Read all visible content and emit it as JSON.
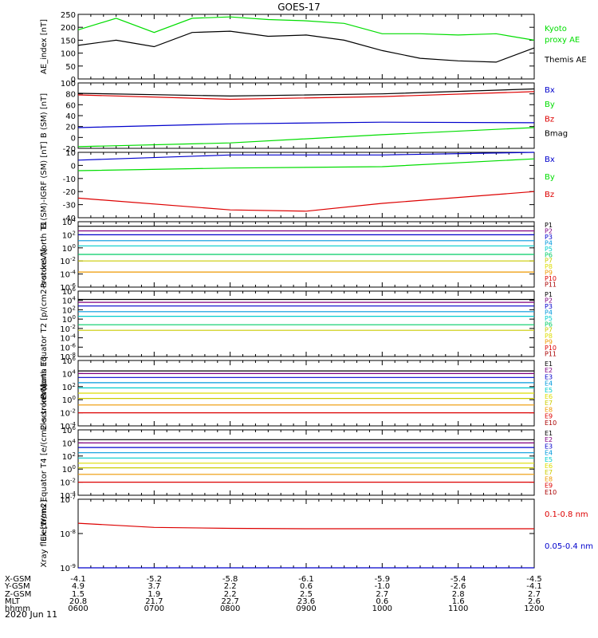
{
  "title": "GOES-17",
  "date_label": "2020 Jun 11",
  "chart_data": [
    {
      "type": "line",
      "ylabel": "AE_index [nT]",
      "ylim": [
        0,
        250
      ],
      "yticks": [
        "0",
        "50",
        "100",
        "150",
        "200",
        "250"
      ],
      "ytick_values": [
        0,
        50,
        100,
        150,
        200,
        250
      ],
      "log": false,
      "legend": [
        {
          "name": "Kyoto",
          "color": "#00dd00"
        },
        {
          "name": "proxy AE",
          "color": "#00dd00"
        },
        {
          "name": "Themis AE",
          "color": "#000000"
        }
      ],
      "series": [
        {
          "name": "Kyoto proxy AE",
          "color": "#00dd00",
          "x": [
            "0600",
            "0630",
            "0700",
            "0730",
            "0800",
            "0830",
            "0900",
            "0930",
            "1000",
            "1030",
            "1100",
            "1130",
            "1200"
          ],
          "values": [
            190,
            235,
            180,
            235,
            240,
            230,
            225,
            215,
            175,
            175,
            170,
            175,
            150
          ]
        },
        {
          "name": "Themis AE",
          "color": "#000000",
          "x": [
            "0600",
            "0630",
            "0700",
            "0730",
            "0800",
            "0830",
            "0900",
            "0930",
            "1000",
            "1030",
            "1100",
            "1130",
            "1200"
          ],
          "values": [
            130,
            150,
            125,
            180,
            185,
            165,
            170,
            150,
            110,
            80,
            70,
            65,
            120
          ]
        }
      ]
    },
    {
      "type": "line",
      "ylabel": "B (SM) [nT]",
      "ylim": [
        -20,
        100
      ],
      "yticks": [
        "-20",
        "0",
        "20",
        "40",
        "60",
        "80",
        "100"
      ],
      "ytick_values": [
        -20,
        0,
        20,
        40,
        60,
        80,
        100
      ],
      "log": false,
      "legend": [
        {
          "name": "Bx",
          "color": "#0000cc"
        },
        {
          "name": "By",
          "color": "#00dd00"
        },
        {
          "name": "Bz",
          "color": "#dd0000"
        },
        {
          "name": "Bmag",
          "color": "#000000"
        }
      ],
      "series": [
        {
          "name": "Bx",
          "color": "#0000cc",
          "x": [
            "0600",
            "0800",
            "1000",
            "1200"
          ],
          "values": [
            18,
            25,
            28,
            27
          ]
        },
        {
          "name": "By",
          "color": "#00dd00",
          "x": [
            "0600",
            "0800",
            "1000",
            "1200"
          ],
          "values": [
            -17,
            -10,
            5,
            18
          ]
        },
        {
          "name": "Bz",
          "color": "#dd0000",
          "x": [
            "0600",
            "0800",
            "1000",
            "1200"
          ],
          "values": [
            78,
            70,
            75,
            84
          ]
        },
        {
          "name": "Bmag",
          "color": "#000000",
          "x": [
            "0600",
            "0800",
            "1000",
            "1200"
          ],
          "values": [
            81,
            76,
            80,
            89
          ]
        }
      ]
    },
    {
      "type": "line",
      "ylabel": "B (SM)-IGRF (SM) [nT]",
      "ylim": [
        -40,
        10
      ],
      "yticks": [
        "-40",
        "-30",
        "-20",
        "-10",
        "0",
        "10"
      ],
      "ytick_values": [
        -40,
        -30,
        -20,
        -10,
        0,
        10
      ],
      "log": false,
      "legend": [
        {
          "name": "Bx",
          "color": "#0000cc"
        },
        {
          "name": "By",
          "color": "#00dd00"
        },
        {
          "name": "Bz",
          "color": "#dd0000"
        }
      ],
      "series": [
        {
          "name": "Bx",
          "color": "#0000cc",
          "x": [
            "0600",
            "0800",
            "1000",
            "1200"
          ],
          "values": [
            4,
            8,
            8,
            10
          ]
        },
        {
          "name": "By",
          "color": "#00dd00",
          "x": [
            "0600",
            "0800",
            "1000",
            "1200"
          ],
          "values": [
            -4,
            -2,
            -1,
            5
          ]
        },
        {
          "name": "Bz",
          "color": "#dd0000",
          "x": [
            "0600",
            "0800",
            "0900",
            "1000",
            "1200"
          ],
          "values": [
            -25,
            -34,
            -35,
            -29,
            -20
          ]
        }
      ]
    },
    {
      "type": "line",
      "ylabel": "Protons North T1",
      "ylim": [
        -6,
        4
      ],
      "yticks": [
        "10-6",
        "10-4",
        "10-2",
        "100",
        "102",
        "104"
      ],
      "ytick_values": [
        -6,
        -4,
        -2,
        0,
        2,
        4
      ],
      "log": true,
      "legend": [
        {
          "name": "P1",
          "color": "#000000"
        },
        {
          "name": "P2",
          "color": "#800080"
        },
        {
          "name": "P3",
          "color": "#0000cc"
        },
        {
          "name": "P4",
          "color": "#0099dd"
        },
        {
          "name": "P5",
          "color": "#00cccc"
        },
        {
          "name": "P6",
          "color": "#00cc66"
        },
        {
          "name": "P7",
          "color": "#cccc00"
        },
        {
          "name": "P8",
          "color": "#dddd00"
        },
        {
          "name": "P9",
          "color": "#ee9900"
        },
        {
          "name": "P10",
          "color": "#dd0000"
        },
        {
          "name": "P11",
          "color": "#aa0000"
        }
      ],
      "series": [
        {
          "name": "P1",
          "color": "#000000",
          "x": [
            "0600",
            "1200"
          ],
          "values": [
            3.3,
            3.3
          ]
        },
        {
          "name": "P2",
          "color": "#800080",
          "x": [
            "0600",
            "1200"
          ],
          "values": [
            2.6,
            2.6
          ]
        },
        {
          "name": "P3",
          "color": "#0000cc",
          "x": [
            "0600",
            "1200"
          ],
          "values": [
            2.0,
            2.0
          ]
        },
        {
          "name": "P4",
          "color": "#0099dd",
          "x": [
            "0600",
            "1200"
          ],
          "values": [
            1.1,
            1.1
          ]
        },
        {
          "name": "P5",
          "color": "#00cccc",
          "x": [
            "0600",
            "1200"
          ],
          "values": [
            0.3,
            0.3
          ]
        },
        {
          "name": "P6",
          "color": "#00cc66",
          "x": [
            "0600",
            "1200"
          ],
          "values": [
            -1.0,
            -1.0
          ]
        },
        {
          "name": "P7",
          "color": "#cccc00",
          "x": [
            "0600",
            "1200"
          ],
          "values": [
            -2.0,
            -2.0
          ]
        },
        {
          "name": "P9",
          "color": "#ee9900",
          "x": [
            "0600",
            "1200"
          ],
          "values": [
            -3.7,
            -3.7
          ]
        }
      ]
    },
    {
      "type": "line",
      "ylabel": "Protons Equator T2 [p/(cm2-s-sr-keV)]",
      "ylim": [
        -8,
        6
      ],
      "yticks": [
        "10-8",
        "10-6",
        "10-4",
        "10-2",
        "100",
        "102",
        "104",
        "106"
      ],
      "ytick_values": [
        -8,
        -6,
        -4,
        -2,
        0,
        2,
        4,
        6
      ],
      "log": true,
      "legend": [
        {
          "name": "P1",
          "color": "#000000"
        },
        {
          "name": "P2",
          "color": "#800080"
        },
        {
          "name": "P3",
          "color": "#0000cc"
        },
        {
          "name": "P4",
          "color": "#0099dd"
        },
        {
          "name": "P5",
          "color": "#00cccc"
        },
        {
          "name": "P6",
          "color": "#00cc66"
        },
        {
          "name": "P7",
          "color": "#cccc00"
        },
        {
          "name": "P8",
          "color": "#dddd00"
        },
        {
          "name": "P9",
          "color": "#ee9900"
        },
        {
          "name": "P10",
          "color": "#dd0000"
        },
        {
          "name": "P11",
          "color": "#aa0000"
        }
      ],
      "series": [
        {
          "name": "P1",
          "color": "#000000",
          "x": [
            "0600",
            "1200"
          ],
          "values": [
            4.2,
            4.2
          ]
        },
        {
          "name": "P2",
          "color": "#800080",
          "x": [
            "0600",
            "1200"
          ],
          "values": [
            3.6,
            3.6
          ]
        },
        {
          "name": "P3",
          "color": "#0000cc",
          "x": [
            "0600",
            "1200"
          ],
          "values": [
            2.8,
            2.8
          ]
        },
        {
          "name": "P4",
          "color": "#0099dd",
          "x": [
            "0600",
            "1200"
          ],
          "values": [
            1.6,
            1.6
          ]
        },
        {
          "name": "P5",
          "color": "#00cccc",
          "x": [
            "0600",
            "1200"
          ],
          "values": [
            0.6,
            0.6
          ]
        },
        {
          "name": "P6",
          "color": "#00cc66",
          "x": [
            "0600",
            "1200"
          ],
          "values": [
            -1.2,
            -1.2
          ]
        },
        {
          "name": "P7",
          "color": "#cccc00",
          "x": [
            "0600",
            "1200"
          ],
          "values": [
            -2.4,
            -2.4
          ]
        }
      ]
    },
    {
      "type": "line",
      "ylabel": "Electrons North T3",
      "ylim": [
        -4,
        6
      ],
      "yticks": [
        "10-4",
        "10-2",
        "100",
        "102",
        "104",
        "106"
      ],
      "ytick_values": [
        -4,
        -2,
        0,
        2,
        4,
        6
      ],
      "log": true,
      "legend": [
        {
          "name": "E1",
          "color": "#000000"
        },
        {
          "name": "E2",
          "color": "#800080"
        },
        {
          "name": "E3",
          "color": "#0000cc"
        },
        {
          "name": "E4",
          "color": "#0099dd"
        },
        {
          "name": "E5",
          "color": "#00cccc"
        },
        {
          "name": "E6",
          "color": "#dddd00"
        },
        {
          "name": "E7",
          "color": "#cccc00"
        },
        {
          "name": "E8",
          "color": "#ee9900"
        },
        {
          "name": "E9",
          "color": "#dd0000"
        },
        {
          "name": "E10",
          "color": "#aa0000"
        }
      ],
      "series": [
        {
          "name": "E1",
          "color": "#000000",
          "x": [
            "0600",
            "1200"
          ],
          "values": [
            4.4,
            4.4
          ]
        },
        {
          "name": "E2",
          "color": "#800080",
          "x": [
            "0600",
            "1200"
          ],
          "values": [
            4.0,
            4.0
          ]
        },
        {
          "name": "E3",
          "color": "#0000cc",
          "x": [
            "0600",
            "1200"
          ],
          "values": [
            3.4,
            3.4
          ]
        },
        {
          "name": "E4",
          "color": "#0099dd",
          "x": [
            "0600",
            "1200"
          ],
          "values": [
            2.6,
            2.6
          ]
        },
        {
          "name": "E5",
          "color": "#00cccc",
          "x": [
            "0600",
            "1200"
          ],
          "values": [
            1.8,
            1.8
          ]
        },
        {
          "name": "E6",
          "color": "#dddd00",
          "x": [
            "0600",
            "1200"
          ],
          "values": [
            1.0,
            1.0
          ]
        },
        {
          "name": "E7",
          "color": "#cccc00",
          "x": [
            "0600",
            "1200"
          ],
          "values": [
            0.2,
            0.2
          ]
        },
        {
          "name": "E8",
          "color": "#ee9900",
          "x": [
            "0600",
            "1200"
          ],
          "values": [
            -0.8,
            -0.8
          ]
        },
        {
          "name": "E9",
          "color": "#dd0000",
          "x": [
            "0600",
            "1200"
          ],
          "values": [
            -2.0,
            -2.0
          ]
        }
      ]
    },
    {
      "type": "line",
      "ylabel": "Electrons Equator T4 [e/(cm2-s-sr-keV)]",
      "ylim": [
        -4,
        6
      ],
      "yticks": [
        "10-4",
        "10-2",
        "100",
        "102",
        "104",
        "106"
      ],
      "ytick_values": [
        -4,
        -2,
        0,
        2,
        4,
        6
      ],
      "log": true,
      "legend": [
        {
          "name": "E1",
          "color": "#000000"
        },
        {
          "name": "E2",
          "color": "#800080"
        },
        {
          "name": "E3",
          "color": "#0000cc"
        },
        {
          "name": "E4",
          "color": "#0099dd"
        },
        {
          "name": "E5",
          "color": "#00cccc"
        },
        {
          "name": "E6",
          "color": "#dddd00"
        },
        {
          "name": "E7",
          "color": "#cccc00"
        },
        {
          "name": "E8",
          "color": "#ee9900"
        },
        {
          "name": "E9",
          "color": "#dd0000"
        },
        {
          "name": "E10",
          "color": "#aa0000"
        }
      ],
      "series": [
        {
          "name": "E1",
          "color": "#000000",
          "x": [
            "0600",
            "1200"
          ],
          "values": [
            4.5,
            4.5
          ]
        },
        {
          "name": "E2",
          "color": "#800080",
          "x": [
            "0600",
            "1200"
          ],
          "values": [
            4.0,
            4.0
          ]
        },
        {
          "name": "E3",
          "color": "#0000cc",
          "x": [
            "0600",
            "1200"
          ],
          "values": [
            3.3,
            3.3
          ]
        },
        {
          "name": "E4",
          "color": "#0099dd",
          "x": [
            "0600",
            "1200"
          ],
          "values": [
            2.5,
            2.5
          ]
        },
        {
          "name": "E5",
          "color": "#00cccc",
          "x": [
            "0600",
            "1200"
          ],
          "values": [
            1.7,
            1.7
          ]
        },
        {
          "name": "E6",
          "color": "#dddd00",
          "x": [
            "0600",
            "1200"
          ],
          "values": [
            0.9,
            0.9
          ]
        },
        {
          "name": "E7",
          "color": "#cccc00",
          "x": [
            "0600",
            "1200"
          ],
          "values": [
            0.2,
            0.2
          ]
        },
        {
          "name": "E8",
          "color": "#ee9900",
          "x": [
            "0600",
            "1200"
          ],
          "values": [
            -0.8,
            -0.8
          ]
        },
        {
          "name": "E9",
          "color": "#dd0000",
          "x": [
            "0600",
            "1200"
          ],
          "values": [
            -2.0,
            -2.0
          ]
        }
      ]
    },
    {
      "type": "line",
      "ylabel": "Xray flux [W/m2]",
      "ylim": [
        -9,
        -7
      ],
      "yticks": [
        "10-9",
        "10-8",
        "10-7"
      ],
      "ytick_values": [
        -9,
        -8,
        -7
      ],
      "log": true,
      "legend": [
        {
          "name": "0.1-0.8 nm",
          "color": "#dd0000"
        },
        {
          "name": "0.05-0.4 nm",
          "color": "#0000cc"
        }
      ],
      "series": [
        {
          "name": "0.1-0.8 nm",
          "color": "#dd0000",
          "x": [
            "0600",
            "0700",
            "0800",
            "0900",
            "1000",
            "1100",
            "1200"
          ],
          "values": [
            -7.7,
            -7.82,
            -7.85,
            -7.86,
            -7.86,
            -7.86,
            -7.86
          ]
        },
        {
          "name": "0.05-0.4 nm",
          "color": "#0000cc",
          "x": [
            "0600",
            "1200"
          ],
          "values": [
            -9,
            -9
          ]
        }
      ]
    }
  ],
  "ephemeris": {
    "labels": [
      "X-GSM",
      "Y-GSM",
      "Z-GSM",
      "MLT",
      "hhmm"
    ],
    "columns": [
      [
        "-4.1",
        "4.9",
        "1.5",
        "20.8",
        "0600"
      ],
      [
        "-5.2",
        "3.7",
        "1.9",
        "21.7",
        "0700"
      ],
      [
        "-5.8",
        "2.2",
        "2.2",
        "22.7",
        "0800"
      ],
      [
        "-6.1",
        "0.6",
        "2.5",
        "23.6",
        "0900"
      ],
      [
        "-5.9",
        "-1.0",
        "2.7",
        "0.6",
        "1000"
      ],
      [
        "-5.4",
        "-2.6",
        "2.8",
        "1.6",
        "1100"
      ],
      [
        "-4.5",
        "-4.1",
        "2.7",
        "2.6",
        "1200"
      ]
    ]
  }
}
